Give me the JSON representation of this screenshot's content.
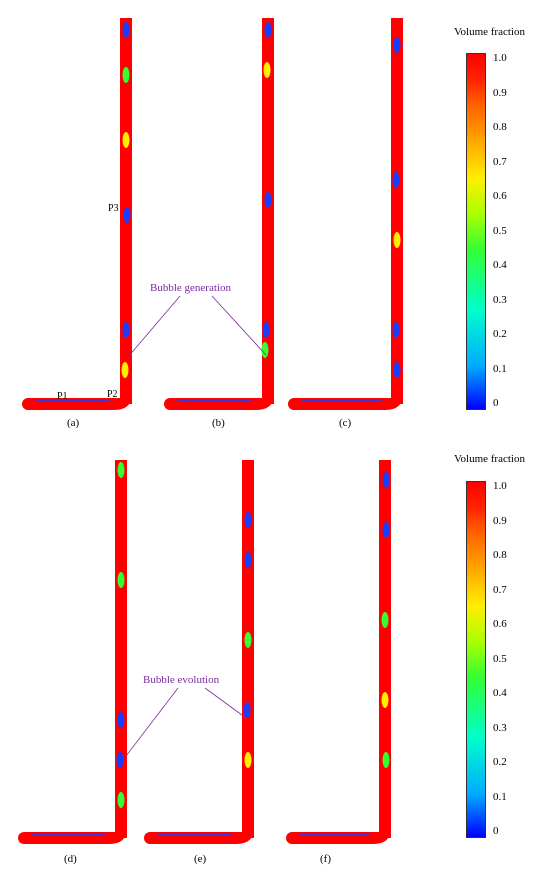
{
  "colorbar_title": "Volume fraction",
  "colorbar_ticks": [
    "1.0",
    "0.9",
    "0.8",
    "0.7",
    "0.6",
    "0.5",
    "0.4",
    "0.3",
    "0.2",
    "0.1",
    "0"
  ],
  "colormap": [
    "#0000ff",
    "#00aaff",
    "#00ffcc",
    "#33ff33",
    "#aaff00",
    "#ffee00",
    "#ffaa00",
    "#ff6600",
    "#ff2200",
    "#ff0000"
  ],
  "pipe_fill_color": "#ff0000",
  "panels": [
    "(a)",
    "(b)",
    "(c)",
    "(d)",
    "(e)",
    "(f)"
  ],
  "points": [
    "P1",
    "P2",
    "P3"
  ],
  "annotations": {
    "top": "Bubble generation",
    "bottom": "Bubble evolution"
  },
  "annotation_color": "#7a2aa0"
}
